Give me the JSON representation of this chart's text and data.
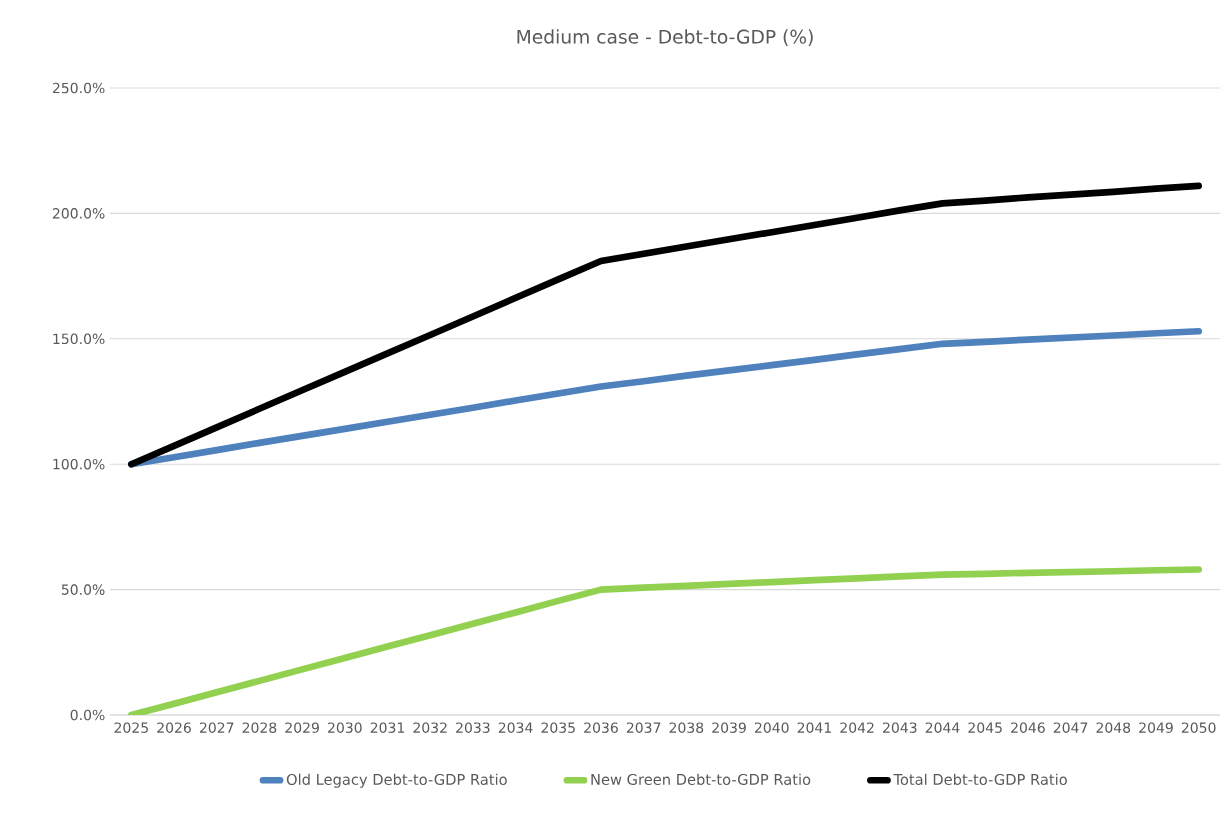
{
  "chart_data": {
    "type": "line",
    "title": "Medium case - Debt-to-GDP (%)",
    "categories": [
      "2025",
      "2026",
      "2027",
      "2028",
      "2029",
      "2030",
      "2031",
      "2032",
      "2033",
      "2034",
      "2035",
      "2036",
      "2037",
      "2038",
      "2039",
      "2040",
      "2041",
      "2042",
      "2043",
      "2044",
      "2045",
      "2046",
      "2047",
      "2048",
      "2049",
      "2050"
    ],
    "series": [
      {
        "name": "Old Legacy Debt-to-GDP Ratio",
        "color": "#4f81bd",
        "values": [
          100,
          102.8,
          105.6,
          108.5,
          111.3,
          114.1,
          116.9,
          119.7,
          122.5,
          125.4,
          128.2,
          131,
          133.1,
          135.3,
          137.4,
          139.5,
          141.6,
          143.8,
          145.9,
          148,
          148.8,
          149.7,
          150.5,
          151.3,
          152.2,
          153
        ]
      },
      {
        "name": "New Green Debt-to-GDP Ratio",
        "color": "#92d050",
        "values": [
          0,
          4.5,
          9.1,
          13.6,
          18.2,
          22.7,
          27.3,
          31.8,
          36.4,
          40.9,
          45.5,
          50,
          50.8,
          51.5,
          52.3,
          53,
          53.8,
          54.5,
          55.3,
          56,
          56.3,
          56.7,
          57,
          57.3,
          57.7,
          58
        ]
      },
      {
        "name": "Total Debt-to-GDP Ratio",
        "color": "#000000",
        "values": [
          100,
          107.3,
          114.7,
          122.1,
          129.5,
          136.8,
          144.2,
          151.5,
          158.9,
          166.3,
          173.7,
          181,
          183.9,
          186.8,
          189.7,
          192.5,
          195.4,
          198.3,
          201.2,
          204,
          205.1,
          206.4,
          207.5,
          208.6,
          209.9,
          211
        ]
      }
    ],
    "ylim": [
      0,
      250
    ],
    "yticks": [
      {
        "value": 0,
        "label": "0.0%"
      },
      {
        "value": 50,
        "label": "50.0%"
      },
      {
        "value": 100,
        "label": "100.0%"
      },
      {
        "value": 150,
        "label": "150.0%"
      },
      {
        "value": 200,
        "label": "200.0%"
      },
      {
        "value": 250,
        "label": "250.0%"
      }
    ],
    "grid": "y",
    "legend": "bottom",
    "marker": "none",
    "line_style": "solid"
  }
}
